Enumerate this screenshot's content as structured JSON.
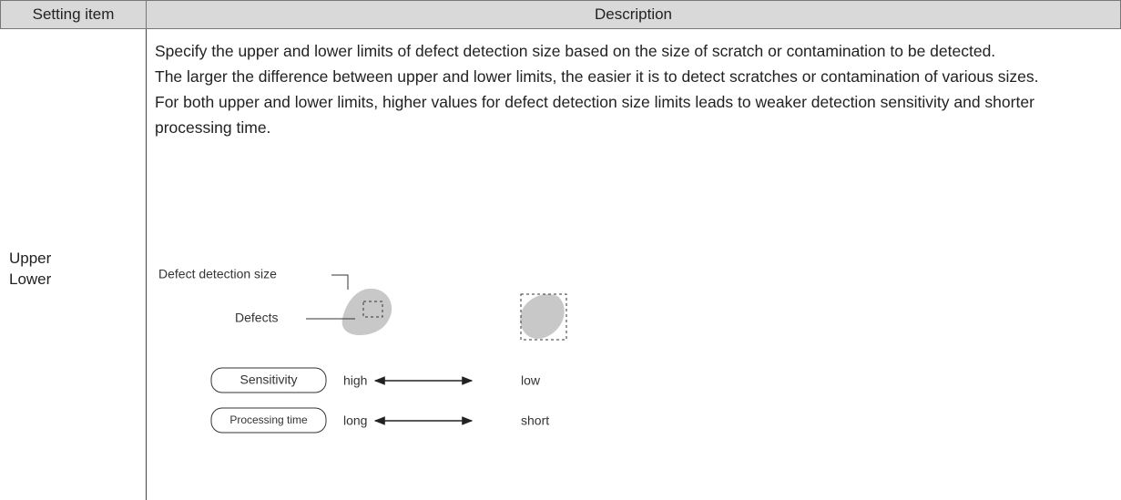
{
  "table": {
    "header": [
      "Setting item",
      "Description"
    ],
    "rows": [
      {
        "item": [
          "Upper",
          "Lower"
        ],
        "description": [
          "Specify the upper and lower limits of defect detection size based on the size of scratch or contamination to be detected.",
          "The larger the difference between upper and lower limits, the easier it is to detect scratches or contamination of various sizes.",
          "For both upper and lower limits, higher values for defect detection size limits leads to weaker detection sensitivity and shorter processing time."
        ],
        "figure": {
          "size_label": "Defect detection size",
          "defects_label": "Defects",
          "sensitivity": {
            "label": "Sensitivity",
            "from": "high",
            "to": "low"
          },
          "processing_time": {
            "label": "Processing time",
            "from": "long",
            "to": "short"
          }
        }
      }
    ]
  }
}
